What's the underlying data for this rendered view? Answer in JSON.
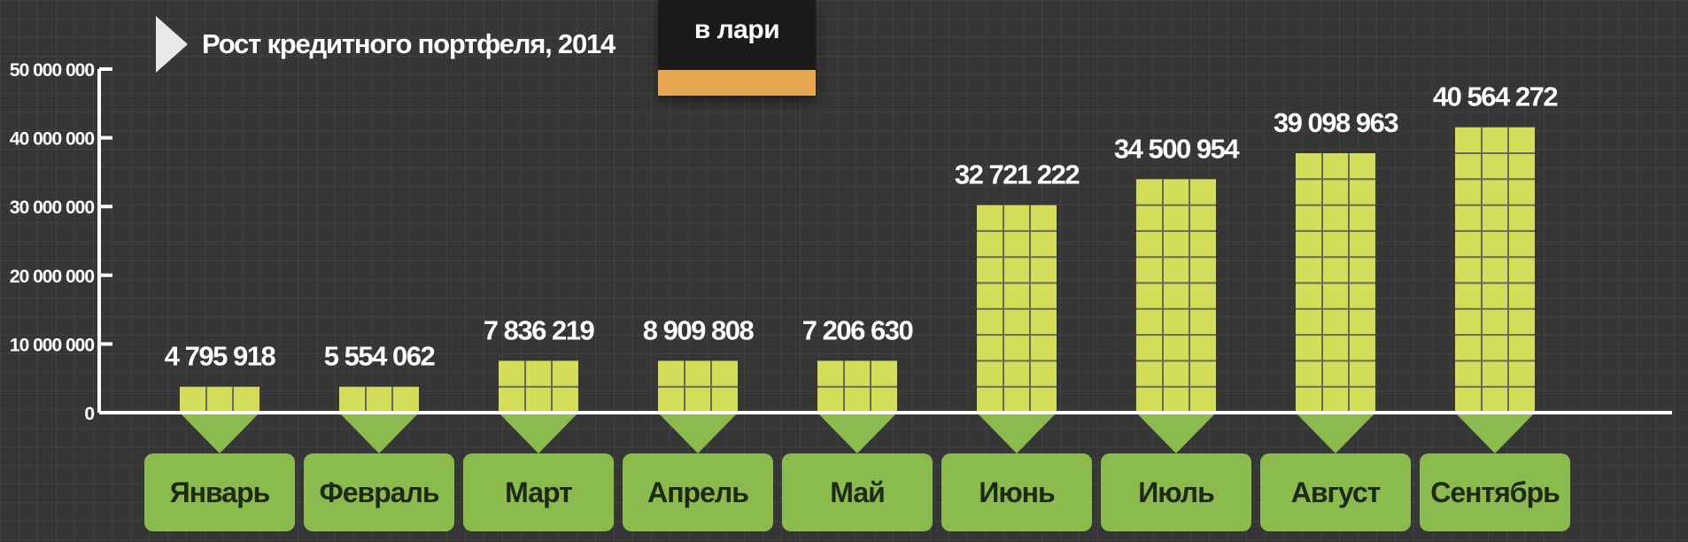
{
  "title": "Рост кредитного портфеля, 2014",
  "legend": {
    "label": "в лари",
    "color": "#e8a651"
  },
  "colors": {
    "bar": "#d4dd5a",
    "bar_grid": "#6a6a55",
    "pointer": "#8bba4f",
    "label_box": "#8bba4f",
    "axis": "#ffffff"
  },
  "chart_data": {
    "type": "bar",
    "title": "Рост кредитного портфеля, 2014",
    "categories": [
      "Январь",
      "Февраль",
      "Март",
      "Апрель",
      "Май",
      "Июнь",
      "Июль",
      "Август",
      "Сентябрь"
    ],
    "values": [
      4795918,
      5554062,
      7836219,
      8909808,
      7206630,
      32721222,
      34500954,
      39098963,
      40564272
    ],
    "value_labels": [
      "4 795 918",
      "5 554 062",
      "7 836 219",
      "8 909 808",
      "7 206 630",
      "32 721 222",
      "34 500 954",
      "39 098 963",
      "40 564 272"
    ],
    "filled_rows": [
      1,
      1,
      2,
      2,
      2,
      8,
      9,
      10,
      11
    ],
    "y_ticks": [
      0,
      10000000,
      20000000,
      30000000,
      40000000,
      50000000
    ],
    "y_tick_labels": [
      "0",
      "10 000 000",
      "20 000 000",
      "30 000 000",
      "40 000 000",
      "50 000 000"
    ],
    "ylim": [
      0,
      50000000
    ],
    "xlabel": "",
    "ylabel": "",
    "legend": "в лари"
  }
}
